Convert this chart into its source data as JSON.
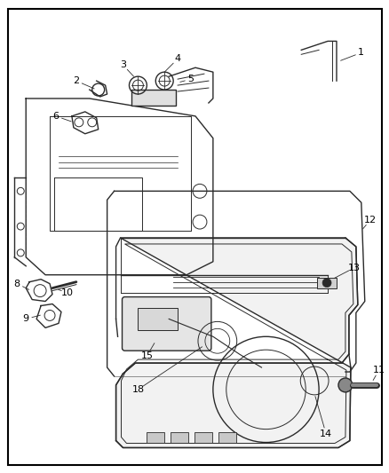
{
  "bg_color": "#ffffff",
  "border_color": "#000000",
  "line_color": "#2a2a2a",
  "label_color": "#000000",
  "label_fontsize": 8,
  "fig_width": 4.39,
  "fig_height": 5.33,
  "dpi": 100
}
